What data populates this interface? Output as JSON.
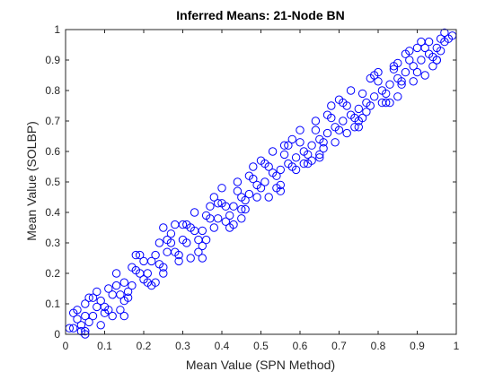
{
  "chart_data": {
    "type": "scatter",
    "title": "Inferred Means: 21-Node BN",
    "xlabel": "Mean Value (SPN Method)",
    "ylabel": "Mean Value (SOLBP)",
    "xlim": [
      0,
      1
    ],
    "ylim": [
      0,
      1
    ],
    "xticks": [
      "0",
      "0.1",
      "0.2",
      "0.3",
      "0.4",
      "0.5",
      "0.6",
      "0.7",
      "0.8",
      "0.9",
      "1"
    ],
    "yticks": [
      "0",
      "0.1",
      "0.2",
      "0.3",
      "0.4",
      "0.5",
      "0.6",
      "0.7",
      "0.8",
      "0.9",
      "1"
    ],
    "grid": false,
    "legend": false,
    "marker": "open-circle",
    "marker_color": "#0000ff",
    "axis_color": "#262626",
    "series": [
      {
        "x": [
          0.02,
          0.04,
          0.05,
          0.07,
          0.08,
          0.1,
          0.12,
          0.14,
          0.15,
          0.17,
          0.19,
          0.21,
          0.22,
          0.24,
          0.26,
          0.28,
          0.3,
          0.31,
          0.33,
          0.35,
          0.37,
          0.39,
          0.41,
          0.43,
          0.45,
          0.47,
          0.49,
          0.51,
          0.53,
          0.55,
          0.57,
          0.59,
          0.61,
          0.63,
          0.65,
          0.67,
          0.69,
          0.71,
          0.73,
          0.75,
          0.77,
          0.79,
          0.81,
          0.83,
          0.85,
          0.87,
          0.89,
          0.91,
          0.93,
          0.95,
          0.97,
          0.98,
          0.99,
          0.03,
          0.06,
          0.09,
          0.11,
          0.13,
          0.16,
          0.18,
          0.2,
          0.23,
          0.25,
          0.27,
          0.29,
          0.32,
          0.34,
          0.36,
          0.38,
          0.4,
          0.42,
          0.44,
          0.46,
          0.48,
          0.5,
          0.52,
          0.54,
          0.56,
          0.58,
          0.6,
          0.62,
          0.64,
          0.66,
          0.68,
          0.7,
          0.72,
          0.74,
          0.76,
          0.78,
          0.8,
          0.82,
          0.84,
          0.86,
          0.88,
          0.9,
          0.92,
          0.94,
          0.96,
          0.05,
          0.1,
          0.15,
          0.2,
          0.25,
          0.3,
          0.35,
          0.4,
          0.45,
          0.5,
          0.55,
          0.6,
          0.65,
          0.7,
          0.75,
          0.8,
          0.85,
          0.9,
          0.95,
          0.08,
          0.12,
          0.18,
          0.22,
          0.28,
          0.32,
          0.38,
          0.42,
          0.48,
          0.52,
          0.58,
          0.62,
          0.68,
          0.72,
          0.78,
          0.82,
          0.88,
          0.92,
          0.06,
          0.14,
          0.24,
          0.34,
          0.44,
          0.54,
          0.64,
          0.74,
          0.84,
          0.94,
          0.13,
          0.23,
          0.33,
          0.43,
          0.53,
          0.63,
          0.73,
          0.83,
          0.93,
          0.02,
          0.04,
          0.07,
          0.09,
          0.11,
          0.17,
          0.27,
          0.37,
          0.47,
          0.57,
          0.67,
          0.77,
          0.87,
          0.97,
          0.01,
          0.03,
          0.05,
          0.16,
          0.26,
          0.36,
          0.46,
          0.56,
          0.66,
          0.76,
          0.86,
          0.96,
          0.19,
          0.29,
          0.39,
          0.49,
          0.59,
          0.69,
          0.79,
          0.89,
          0.21,
          0.31,
          0.41,
          0.51,
          0.61,
          0.71,
          0.81,
          0.91,
          0.25,
          0.55,
          0.85,
          0.35,
          0.65,
          0.45,
          0.15,
          0.75,
          0.95,
          0.05
        ],
        "y": [
          0.02,
          0.03,
          0.06,
          0.06,
          0.09,
          0.09,
          0.13,
          0.13,
          0.17,
          0.16,
          0.2,
          0.2,
          0.24,
          0.23,
          0.27,
          0.27,
          0.31,
          0.3,
          0.34,
          0.34,
          0.38,
          0.38,
          0.42,
          0.42,
          0.45,
          0.46,
          0.49,
          0.5,
          0.53,
          0.54,
          0.56,
          0.58,
          0.6,
          0.62,
          0.64,
          0.66,
          0.68,
          0.7,
          0.72,
          0.74,
          0.76,
          0.78,
          0.8,
          0.82,
          0.84,
          0.86,
          0.88,
          0.9,
          0.92,
          0.94,
          0.96,
          0.97,
          0.98,
          0.05,
          0.04,
          0.11,
          0.08,
          0.16,
          0.14,
          0.21,
          0.18,
          0.26,
          0.22,
          0.3,
          0.26,
          0.35,
          0.31,
          0.39,
          0.35,
          0.43,
          0.39,
          0.47,
          0.44,
          0.51,
          0.48,
          0.55,
          0.52,
          0.59,
          0.55,
          0.63,
          0.59,
          0.67,
          0.63,
          0.71,
          0.67,
          0.75,
          0.71,
          0.79,
          0.75,
          0.83,
          0.79,
          0.87,
          0.83,
          0.9,
          0.86,
          0.94,
          0.91,
          0.97,
          0.01,
          0.07,
          0.11,
          0.24,
          0.2,
          0.36,
          0.29,
          0.48,
          0.38,
          0.57,
          0.49,
          0.67,
          0.58,
          0.77,
          0.68,
          0.86,
          0.78,
          0.94,
          0.9,
          0.14,
          0.06,
          0.26,
          0.16,
          0.36,
          0.25,
          0.45,
          0.35,
          0.55,
          0.45,
          0.64,
          0.56,
          0.75,
          0.66,
          0.84,
          0.76,
          0.93,
          0.85,
          0.12,
          0.08,
          0.3,
          0.27,
          0.5,
          0.48,
          0.7,
          0.68,
          0.88,
          0.88,
          0.2,
          0.17,
          0.4,
          0.36,
          0.6,
          0.57,
          0.8,
          0.76,
          0.96,
          0.07,
          0.01,
          0.12,
          0.03,
          0.15,
          0.22,
          0.33,
          0.42,
          0.52,
          0.62,
          0.72,
          0.73,
          0.92,
          0.99,
          0.02,
          0.08,
          0.0,
          0.12,
          0.31,
          0.31,
          0.41,
          0.62,
          0.61,
          0.71,
          0.82,
          0.93,
          0.26,
          0.24,
          0.43,
          0.45,
          0.54,
          0.63,
          0.85,
          0.83,
          0.17,
          0.36,
          0.37,
          0.56,
          0.56,
          0.76,
          0.76,
          0.96,
          0.35,
          0.47,
          0.89,
          0.25,
          0.59,
          0.41,
          0.06,
          0.7,
          0.9,
          0.1
        ]
      }
    ]
  }
}
